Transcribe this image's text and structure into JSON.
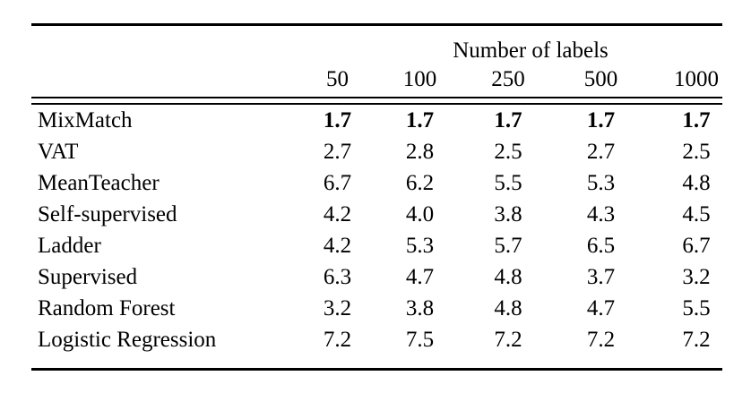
{
  "table": {
    "group_header": "Number of labels",
    "columns": [
      "50",
      "100",
      "250",
      "500",
      "1000"
    ],
    "rows": [
      {
        "label": "MixMatch",
        "bold": true,
        "values": [
          "1.7",
          "1.7",
          "1.7",
          "1.7",
          "1.7"
        ]
      },
      {
        "label": "VAT",
        "bold": false,
        "values": [
          "2.7",
          "2.8",
          "2.5",
          "2.7",
          "2.5"
        ]
      },
      {
        "label": "MeanTeacher",
        "bold": false,
        "values": [
          "6.7",
          "6.2",
          "5.5",
          "5.3",
          "4.8"
        ]
      },
      {
        "label": "Self-supervised",
        "bold": false,
        "values": [
          "4.2",
          "4.0",
          "3.8",
          "4.3",
          "4.5"
        ]
      },
      {
        "label": "Ladder",
        "bold": false,
        "values": [
          "4.2",
          "5.3",
          "5.7",
          "6.5",
          "6.7"
        ]
      },
      {
        "label": "Supervised",
        "bold": false,
        "values": [
          "6.3",
          "4.7",
          "4.8",
          "3.7",
          "3.2"
        ]
      },
      {
        "label": "Random Forest",
        "bold": false,
        "values": [
          "3.2",
          "3.8",
          "4.8",
          "4.7",
          "5.5"
        ]
      },
      {
        "label": "Logistic Regression",
        "bold": false,
        "values": [
          "7.2",
          "7.5",
          "7.2",
          "7.2",
          "7.2"
        ]
      }
    ]
  }
}
